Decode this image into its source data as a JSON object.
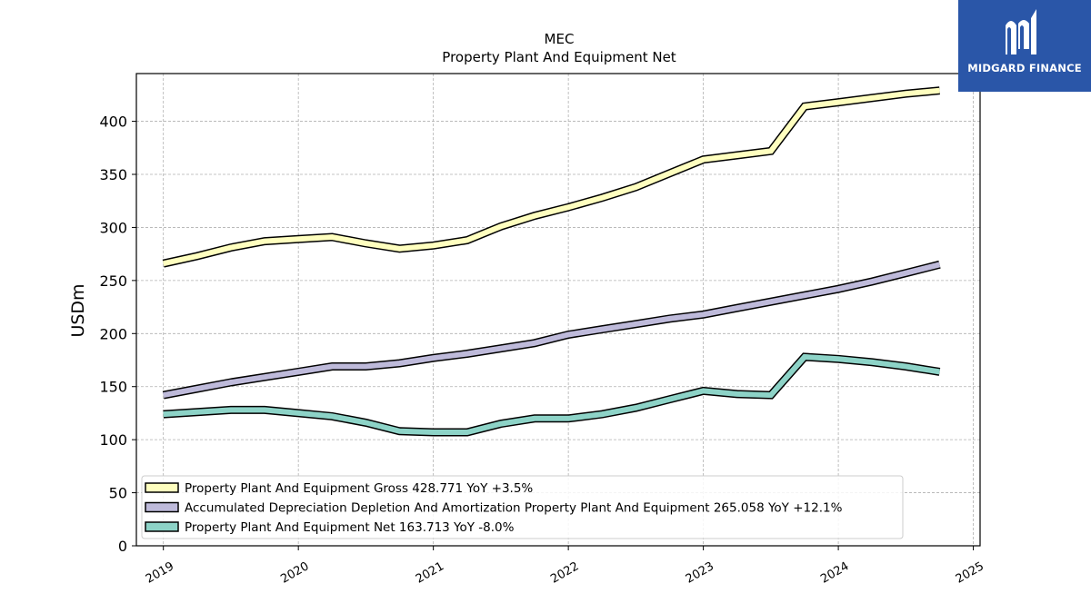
{
  "header": {
    "company": "MEC",
    "title": "Property Plant And Equipment Net"
  },
  "brand": {
    "name": "MIDGARD FINANCE",
    "bg": "#2a56a8"
  },
  "chart_data": {
    "type": "line",
    "title": "MEC\nProperty Plant And Equipment Net",
    "xlabel": "",
    "ylabel": "USDm",
    "xlim": [
      2018.8,
      2025.05
    ],
    "ylim": [
      0,
      445
    ],
    "yticks": [
      0,
      50,
      100,
      150,
      200,
      250,
      300,
      350,
      400
    ],
    "xticks": [
      "2019",
      "2020",
      "2021",
      "2022",
      "2023",
      "2024",
      "2025"
    ],
    "grid": true,
    "legend_position": "lower-left",
    "series": [
      {
        "name": "Property Plant And Equipment Gross",
        "legend_label": "Property Plant And Equipment Gross  428.771 YoY +3.5%",
        "color": "#ffffbf",
        "x": [
          2019.0,
          2019.25,
          2019.5,
          2019.75,
          2020.0,
          2020.25,
          2020.5,
          2020.75,
          2021.0,
          2021.25,
          2021.5,
          2021.75,
          2022.0,
          2022.25,
          2022.5,
          2022.75,
          2023.0,
          2023.25,
          2023.5,
          2023.75,
          2024.0,
          2024.25,
          2024.5,
          2024.75
        ],
        "values": [
          266,
          273,
          281,
          287,
          289,
          291,
          285,
          280,
          283,
          288,
          301,
          311,
          319,
          328,
          338,
          351,
          364,
          368,
          372,
          414,
          418,
          422,
          426,
          429
        ]
      },
      {
        "name": "Accumulated Depreciation Depletion And Amortization Property Plant And Equipment",
        "legend_label": "Accumulated Depreciation Depletion And Amortization Property Plant And Equipment  265.058 YoY +12.1%",
        "color": "#bebada",
        "x": [
          2019.0,
          2019.25,
          2019.5,
          2019.75,
          2020.0,
          2020.25,
          2020.5,
          2020.75,
          2021.0,
          2021.25,
          2021.5,
          2021.75,
          2022.0,
          2022.25,
          2022.5,
          2022.75,
          2023.0,
          2023.25,
          2023.5,
          2023.75,
          2024.0,
          2024.25,
          2024.5,
          2024.75
        ],
        "values": [
          142,
          148,
          154,
          159,
          164,
          169,
          169,
          172,
          177,
          181,
          186,
          191,
          199,
          204,
          209,
          214,
          218,
          224,
          230,
          236,
          242,
          249,
          257,
          265
        ]
      },
      {
        "name": "Property Plant And Equipment Net",
        "legend_label": "Property Plant And Equipment Net  163.713 YoY -8.0%",
        "color": "#8dd3c7",
        "x": [
          2019.0,
          2019.25,
          2019.5,
          2019.75,
          2020.0,
          2020.25,
          2020.5,
          2020.75,
          2021.0,
          2021.25,
          2021.5,
          2021.75,
          2022.0,
          2022.25,
          2022.5,
          2022.75,
          2023.0,
          2023.25,
          2023.5,
          2023.75,
          2024.0,
          2024.25,
          2024.5,
          2024.75
        ],
        "values": [
          124,
          126,
          128,
          128,
          125,
          122,
          116,
          108,
          107,
          107,
          115,
          120,
          120,
          124,
          130,
          138,
          146,
          143,
          142,
          178,
          176,
          173,
          169,
          164
        ]
      }
    ]
  }
}
